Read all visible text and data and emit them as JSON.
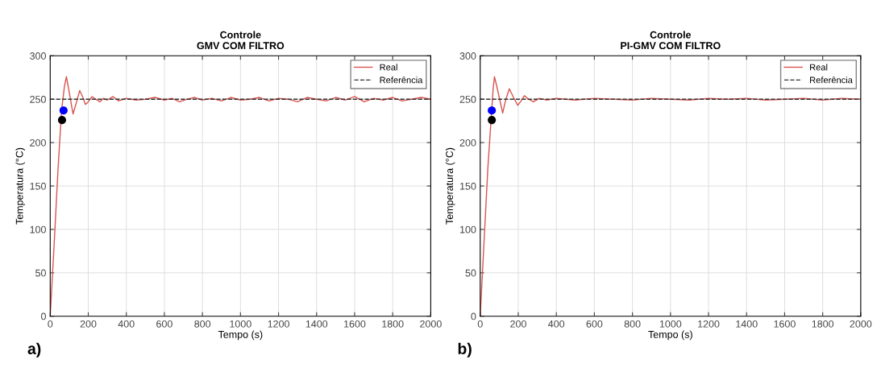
{
  "chart_data": [
    {
      "type": "line",
      "title": "Controle\nGMV COM FILTRO",
      "xlabel": "Tempo (s)",
      "ylabel": "Temperatura (°C)",
      "annotations": [
        "a)"
      ],
      "xlim": [
        0,
        2000
      ],
      "ylim": [
        0,
        300
      ],
      "xticks": [
        0,
        200,
        400,
        600,
        800,
        1000,
        1200,
        1400,
        1600,
        1800,
        2000
      ],
      "yticks": [
        0,
        50,
        100,
        150,
        200,
        250,
        300
      ],
      "grid": true,
      "legend": "top right",
      "series": [
        {
          "name": "Real",
          "color": "#d9534f",
          "line_style": "solid",
          "x": [
            0,
            20,
            40,
            60,
            75,
            85,
            100,
            120,
            140,
            155,
            170,
            185,
            200,
            220,
            240,
            260,
            280,
            300,
            330,
            360,
            400,
            450,
            500,
            550,
            600,
            640,
            680,
            720,
            760,
            800,
            850,
            900,
            950,
            1000,
            1050,
            1100,
            1150,
            1200,
            1250,
            1300,
            1350,
            1400,
            1450,
            1500,
            1550,
            1600,
            1650,
            1700,
            1750,
            1800,
            1850,
            1900,
            1950,
            2000
          ],
          "values": [
            0,
            80,
            165,
            238,
            265,
            276,
            258,
            233,
            248,
            260,
            253,
            244,
            247,
            253,
            250,
            247,
            251,
            249,
            253,
            248,
            251,
            249,
            250,
            252,
            249,
            251,
            247,
            250,
            252,
            249,
            251,
            248,
            252,
            249,
            250,
            252,
            248,
            251,
            250,
            247,
            252,
            250,
            248,
            252,
            249,
            253,
            247,
            251,
            249,
            252,
            248,
            250,
            252,
            250
          ]
        },
        {
          "name": "Referência",
          "color": "#333333",
          "line_style": "dashed",
          "x": [
            0,
            2000
          ],
          "values": [
            250,
            250
          ]
        },
        {
          "type": "scatter",
          "color": "#0000ff",
          "x": [
            70
          ],
          "values": [
            237
          ]
        },
        {
          "type": "scatter",
          "color": "#000000",
          "x": [
            62
          ],
          "values": [
            226
          ]
        }
      ]
    },
    {
      "type": "line",
      "title": "Controle\nPI-GMV COM FILTRO",
      "xlabel": "Tempo (s)",
      "ylabel": "Temperatura (°C)",
      "annotations": [
        "b)"
      ],
      "xlim": [
        0,
        2000
      ],
      "ylim": [
        0,
        300
      ],
      "xticks": [
        0,
        200,
        400,
        600,
        800,
        1000,
        1200,
        1400,
        1600,
        1800,
        2000
      ],
      "yticks": [
        0,
        50,
        100,
        150,
        200,
        250,
        300
      ],
      "grid": true,
      "legend": "top right",
      "series": [
        {
          "name": "Real",
          "color": "#d9534f",
          "line_style": "solid",
          "x": [
            0,
            20,
            40,
            68,
            75,
            90,
            118,
            135,
            153,
            175,
            197,
            215,
            232,
            255,
            280,
            310,
            350,
            400,
            450,
            500,
            600,
            700,
            800,
            900,
            1000,
            1100,
            1200,
            1300,
            1400,
            1500,
            1600,
            1700,
            1800,
            1900,
            2000
          ],
          "values": [
            0,
            85,
            170,
            262,
            276,
            262,
            234,
            250,
            262,
            252,
            243,
            248,
            254,
            250,
            247,
            251,
            249,
            251,
            250,
            249,
            251,
            250,
            249,
            251,
            250,
            249,
            251,
            250,
            251,
            249,
            250,
            251,
            249,
            251,
            250
          ]
        },
        {
          "name": "Referência",
          "color": "#333333",
          "line_style": "dashed",
          "x": [
            0,
            2000
          ],
          "values": [
            250,
            250
          ]
        },
        {
          "type": "scatter",
          "color": "#0000ff",
          "x": [
            61
          ],
          "values": [
            237
          ]
        },
        {
          "type": "scatter",
          "color": "#000000",
          "x": [
            61
          ],
          "values": [
            226
          ]
        }
      ]
    }
  ]
}
